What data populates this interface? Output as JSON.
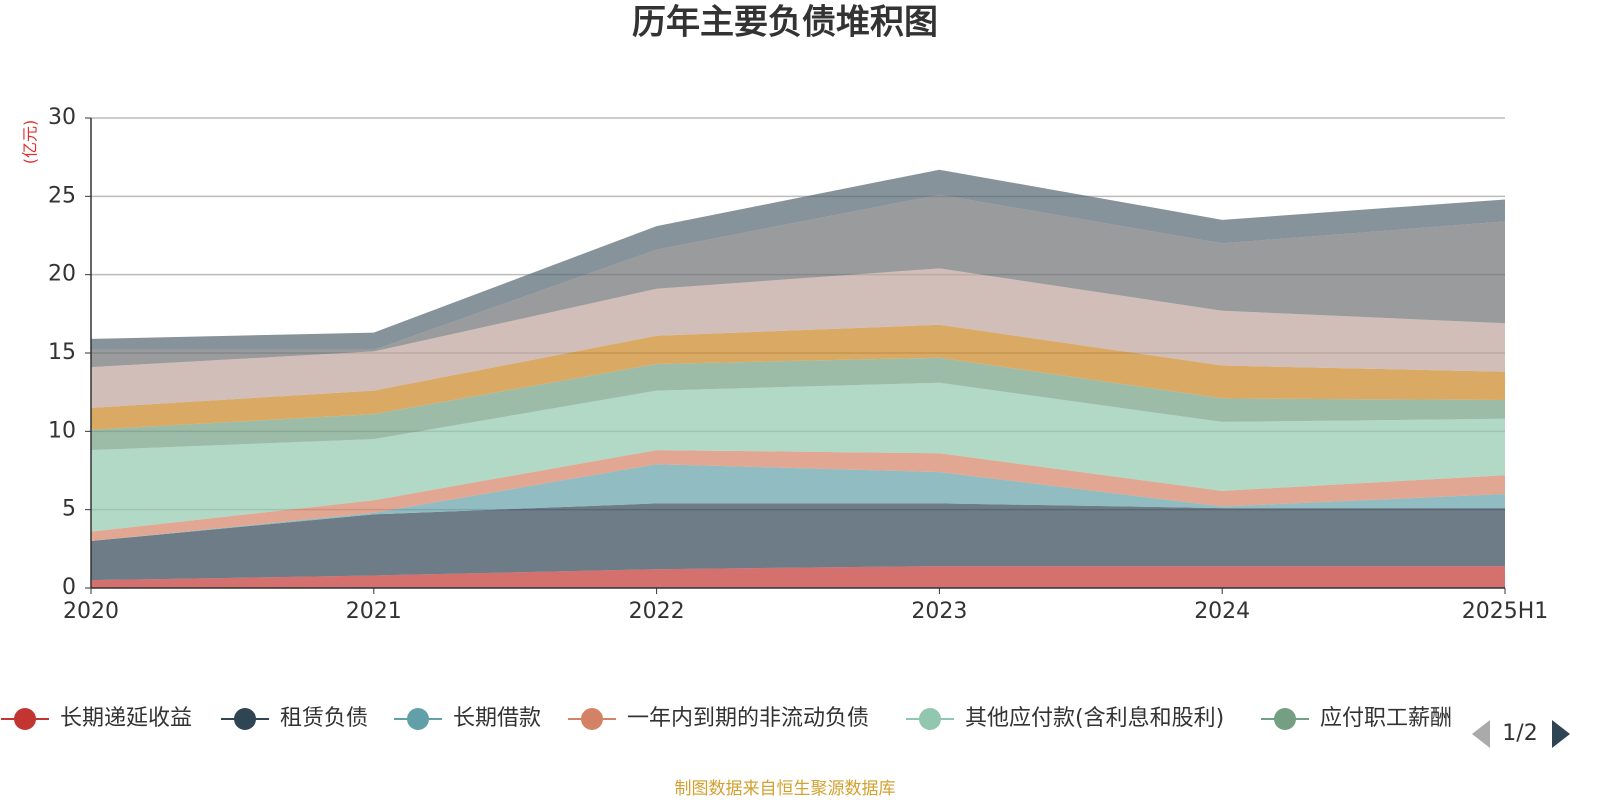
{
  "chart_data": {
    "type": "stacked-area",
    "title": "历年主要负债堆积图",
    "y_label": "(亿元)",
    "categories": [
      "2020",
      "2021",
      "2022",
      "2023",
      "2024",
      "2025H1"
    ],
    "ylim": [
      0,
      30
    ],
    "yticks": [
      0,
      5,
      10,
      15,
      20,
      25,
      30
    ],
    "grid": true,
    "series": [
      {
        "name": "长期递延收益",
        "color": "#c23531",
        "values": [
          0.5,
          0.8,
          1.2,
          1.4,
          1.4,
          1.4
        ]
      },
      {
        "name": "租赁负债",
        "color": "#2f4554",
        "values": [
          2.5,
          3.9,
          4.2,
          4.0,
          3.7,
          3.7
        ]
      },
      {
        "name": "长期借款",
        "color": "#61a0a8",
        "values": [
          0,
          0.1,
          2.5,
          2.0,
          0.1,
          0.9
        ]
      },
      {
        "name": "一年内到期的非流动负债",
        "color": "#d48265",
        "values": [
          0.6,
          0.8,
          0.9,
          1.2,
          1.0,
          1.2
        ]
      },
      {
        "name": "其他应付款(含利息和股利)",
        "color": "#91c7ae",
        "values": [
          5.2,
          3.9,
          3.8,
          4.5,
          4.4,
          3.6
        ]
      },
      {
        "name": "应付职工薪酬",
        "color": "#749f83",
        "values": [
          1.3,
          1.6,
          1.7,
          1.6,
          1.5,
          1.2
        ]
      },
      {
        "color": "#ca8622",
        "values": [
          1.4,
          1.5,
          1.8,
          2.1,
          2.1,
          1.8
        ]
      },
      {
        "color": "#bda29a",
        "values": [
          2.6,
          2.5,
          3.0,
          3.6,
          3.5,
          3.1
        ]
      },
      {
        "color": "#6e7074",
        "values": [
          1.1,
          0.1,
          2.5,
          4.7,
          4.3,
          6.5
        ]
      },
      {
        "color": "#546570",
        "values": [
          0.7,
          1.1,
          1.5,
          1.6,
          1.5,
          1.4
        ]
      }
    ],
    "legend_page": "1/2",
    "source": "制图数据来自恒生聚源数据库"
  }
}
